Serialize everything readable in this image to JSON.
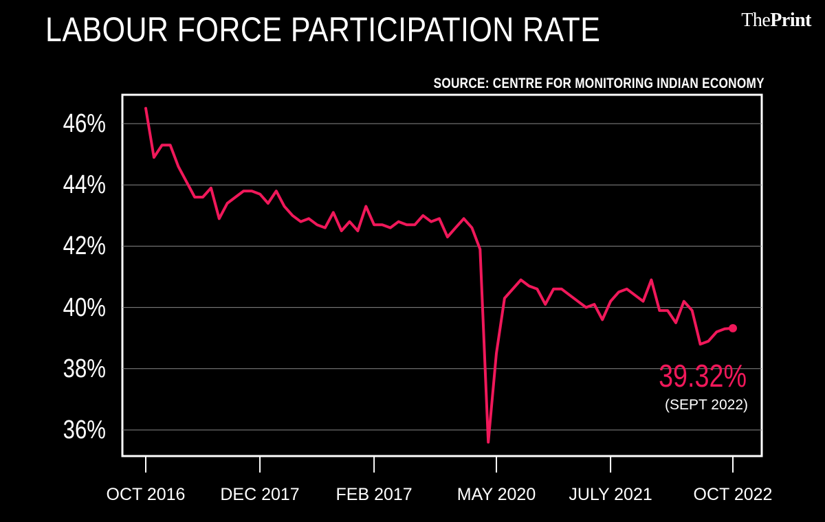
{
  "brand": {
    "part1": "The",
    "part2": "Print"
  },
  "chart_data": {
    "type": "line",
    "title": "LABOUR FORCE PARTICIPATION RATE",
    "source": "SOURCE: CENTRE FOR MONITORING INDIAN ECONOMY",
    "ylabel": "",
    "xlabel": "",
    "ylim": [
      35,
      47
    ],
    "yticks": [
      36,
      38,
      40,
      42,
      44,
      46
    ],
    "ytick_labels": [
      "36%",
      "38%",
      "40%",
      "42%",
      "44%",
      "46%"
    ],
    "xtick_labels": [
      "OCT 2016",
      "DEC 2017",
      "FEB 2017",
      "MAY 2020",
      "JULY 2021",
      "OCT 2022"
    ],
    "xtick_index": [
      0,
      14,
      28,
      43,
      57,
      72
    ],
    "grid": true,
    "series": [
      {
        "name": "Labour force participation rate (%)",
        "color": "#f0185a",
        "values": [
          46.5,
          44.9,
          45.3,
          45.3,
          44.6,
          44.1,
          43.6,
          43.6,
          43.9,
          42.9,
          43.4,
          43.6,
          43.8,
          43.8,
          43.7,
          43.4,
          43.8,
          43.3,
          43.0,
          42.8,
          42.9,
          42.7,
          42.6,
          43.1,
          42.5,
          42.8,
          42.5,
          43.3,
          42.7,
          42.7,
          42.6,
          42.8,
          42.7,
          42.7,
          43.0,
          42.8,
          42.9,
          42.3,
          42.6,
          42.9,
          42.6,
          41.9,
          35.6,
          38.5,
          40.3,
          40.6,
          40.9,
          40.7,
          40.6,
          40.1,
          40.6,
          40.6,
          40.4,
          40.2,
          40.0,
          40.1,
          39.6,
          40.2,
          40.5,
          40.6,
          40.4,
          40.2,
          40.9,
          39.9,
          39.9,
          39.5,
          40.2,
          39.9,
          38.8,
          38.9,
          39.2,
          39.3,
          39.32
        ]
      }
    ],
    "annotation": {
      "value_label": "39.32%",
      "period_label": "(SEPT 2022)"
    }
  }
}
